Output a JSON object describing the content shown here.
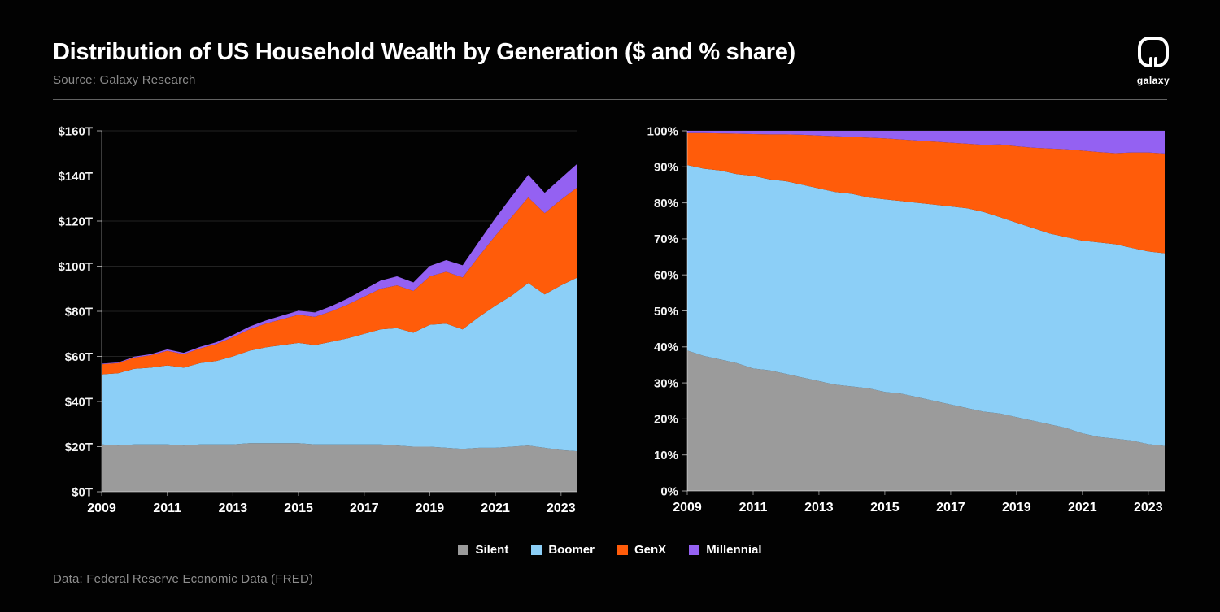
{
  "header": {
    "title": "Distribution of US Household Wealth by Generation ($ and % share)",
    "source": "Source: Galaxy Research",
    "brand": "galaxy"
  },
  "footer": {
    "note": "Data: Federal Reserve Economic Data (FRED)"
  },
  "colors": {
    "background": "#020202",
    "silent": "#9B9B9B",
    "boomer": "#8CCFF7",
    "genx": "#FF5C0A",
    "millennial": "#9461F2",
    "grid": "rgba(255,255,255,0.13)",
    "axis": "rgba(255,255,255,0.45)"
  },
  "legend": {
    "items": [
      {
        "label": "Silent",
        "color": "#9B9B9B"
      },
      {
        "label": "Boomer",
        "color": "#8CCFF7"
      },
      {
        "label": "GenX",
        "color": "#FF5C0A"
      },
      {
        "label": "Millennial",
        "color": "#9461F2"
      }
    ],
    "position": "bottom-center"
  },
  "chart_data": [
    {
      "type": "area",
      "stacked": true,
      "name": "us-household-wealth-absolute",
      "unit": "trillions USD",
      "grid": true,
      "xlim": [
        2009,
        2023.5
      ],
      "ylim": [
        0,
        160
      ],
      "x": [
        2009,
        2009.5,
        2010,
        2010.5,
        2011,
        2011.5,
        2012,
        2012.5,
        2013,
        2013.5,
        2014,
        2014.5,
        2015,
        2015.5,
        2016,
        2016.5,
        2017,
        2017.5,
        2018,
        2018.5,
        2019,
        2019.5,
        2020,
        2020.5,
        2021,
        2021.5,
        2022,
        2022.5,
        2023,
        2023.5
      ],
      "series": [
        {
          "name": "Silent",
          "color": "#9B9B9B",
          "values": [
            21,
            20.5,
            21,
            21,
            21,
            20.5,
            21,
            21,
            21,
            21.5,
            21.5,
            21.5,
            21.5,
            21,
            21,
            21,
            21,
            21,
            20.5,
            20,
            20,
            19.5,
            19,
            19.5,
            19.5,
            20,
            20.5,
            19.5,
            18.5,
            18
          ]
        },
        {
          "name": "Boomer",
          "color": "#8CCFF7",
          "values": [
            31,
            32,
            33.5,
            34,
            35,
            34.5,
            36,
            37,
            39,
            41,
            42.5,
            43.5,
            44.5,
            44,
            45.5,
            47,
            49,
            51,
            52,
            50.5,
            54,
            55,
            53,
            58,
            63,
            67,
            72,
            68,
            73,
            77
          ]
        },
        {
          "name": "GenX",
          "color": "#FF5C0A",
          "values": [
            4.5,
            4.5,
            5,
            5.5,
            6.5,
            6,
            6.5,
            7.5,
            8.5,
            9.5,
            10.5,
            11.5,
            12.5,
            12.5,
            13.5,
            15,
            16.5,
            18,
            19,
            18.5,
            21.5,
            23,
            23,
            27,
            31,
            35,
            38,
            36,
            38,
            40
          ]
        },
        {
          "name": "Millennial",
          "color": "#9461F2",
          "values": [
            0.3,
            0.3,
            0.4,
            0.5,
            0.6,
            0.6,
            0.7,
            0.8,
            1,
            1.2,
            1.4,
            1.6,
            1.8,
            2,
            2.3,
            2.7,
            3.2,
            3.6,
            4,
            3.8,
            4.6,
            5.2,
            5.4,
            6.5,
            7.8,
            9,
            10,
            9,
            9.5,
            10.5
          ]
        }
      ],
      "yticks": [
        {
          "value": 0,
          "label": "$0T"
        },
        {
          "value": 20,
          "label": "$20T"
        },
        {
          "value": 40,
          "label": "$40T"
        },
        {
          "value": 60,
          "label": "$60T"
        },
        {
          "value": 80,
          "label": "$80T"
        },
        {
          "value": 100,
          "label": "$100T"
        },
        {
          "value": 120,
          "label": "$120T"
        },
        {
          "value": 140,
          "label": "$140T"
        },
        {
          "value": 160,
          "label": "$160T"
        }
      ],
      "xticks": [
        {
          "value": 2009,
          "label": "2009"
        },
        {
          "value": 2011,
          "label": "2011"
        },
        {
          "value": 2013,
          "label": "2013"
        },
        {
          "value": 2015,
          "label": "2015"
        },
        {
          "value": 2017,
          "label": "2017"
        },
        {
          "value": 2019,
          "label": "2019"
        },
        {
          "value": 2021,
          "label": "2021"
        },
        {
          "value": 2023,
          "label": "2023"
        }
      ]
    },
    {
      "type": "area",
      "stacked": true,
      "name": "us-household-wealth-percent-share",
      "unit": "percent",
      "grid": true,
      "xlim": [
        2009,
        2023.5
      ],
      "ylim": [
        0,
        100
      ],
      "x": [
        2009,
        2009.5,
        2010,
        2010.5,
        2011,
        2011.5,
        2012,
        2012.5,
        2013,
        2013.5,
        2014,
        2014.5,
        2015,
        2015.5,
        2016,
        2016.5,
        2017,
        2017.5,
        2018,
        2018.5,
        2019,
        2019.5,
        2020,
        2020.5,
        2021,
        2021.5,
        2022,
        2022.5,
        2023,
        2023.5
      ],
      "series": [
        {
          "name": "Silent",
          "color": "#9B9B9B",
          "values": [
            39,
            37.5,
            36.5,
            35.5,
            34,
            33.5,
            32.5,
            31.5,
            30.5,
            29.5,
            29,
            28.5,
            27.5,
            27,
            26,
            25,
            24,
            23,
            22,
            21.5,
            20.5,
            19.5,
            18.5,
            17.5,
            16,
            15,
            14.5,
            14,
            13,
            12.5
          ]
        },
        {
          "name": "Boomer",
          "color": "#8CCFF7",
          "values": [
            51.5,
            52,
            52.5,
            52.5,
            53.5,
            53,
            53.5,
            53.5,
            53.5,
            53.5,
            53.5,
            53,
            53.5,
            53.5,
            54,
            54.5,
            55,
            55.5,
            55.5,
            54.5,
            54,
            53.5,
            53,
            53,
            53.5,
            54,
            54,
            53.5,
            53.5,
            53.5
          ]
        },
        {
          "name": "GenX",
          "color": "#FF5C0A",
          "values": [
            8.9,
            9.9,
            10.3,
            11.2,
            11.6,
            12.5,
            13,
            13.9,
            14.7,
            15.5,
            15.8,
            16.6,
            16.9,
            17.1,
            17.3,
            17.5,
            17.7,
            17.9,
            18.6,
            20.2,
            21.2,
            22.3,
            23.6,
            24.4,
            25,
            25.1,
            25.3,
            26.5,
            27.5,
            27.7
          ]
        },
        {
          "name": "Millennial",
          "color": "#9461F2",
          "values": [
            0.6,
            0.6,
            0.7,
            0.8,
            0.9,
            1,
            1,
            1.1,
            1.3,
            1.5,
            1.7,
            1.9,
            2.1,
            2.4,
            2.7,
            3,
            3.3,
            3.6,
            3.9,
            3.8,
            4.3,
            4.7,
            4.9,
            5.1,
            5.5,
            5.9,
            6.2,
            6,
            6,
            6.3
          ]
        }
      ],
      "yticks": [
        {
          "value": 0,
          "label": "0%"
        },
        {
          "value": 10,
          "label": "10%"
        },
        {
          "value": 20,
          "label": "20%"
        },
        {
          "value": 30,
          "label": "30%"
        },
        {
          "value": 40,
          "label": "40%"
        },
        {
          "value": 50,
          "label": "50%"
        },
        {
          "value": 60,
          "label": "60%"
        },
        {
          "value": 70,
          "label": "70%"
        },
        {
          "value": 80,
          "label": "80%"
        },
        {
          "value": 90,
          "label": "90%"
        },
        {
          "value": 100,
          "label": "100%"
        }
      ],
      "xticks": [
        {
          "value": 2009,
          "label": "2009"
        },
        {
          "value": 2011,
          "label": "2011"
        },
        {
          "value": 2013,
          "label": "2013"
        },
        {
          "value": 2015,
          "label": "2015"
        },
        {
          "value": 2017,
          "label": "2017"
        },
        {
          "value": 2019,
          "label": "2019"
        },
        {
          "value": 2021,
          "label": "2021"
        },
        {
          "value": 2023,
          "label": "2023"
        }
      ]
    }
  ]
}
